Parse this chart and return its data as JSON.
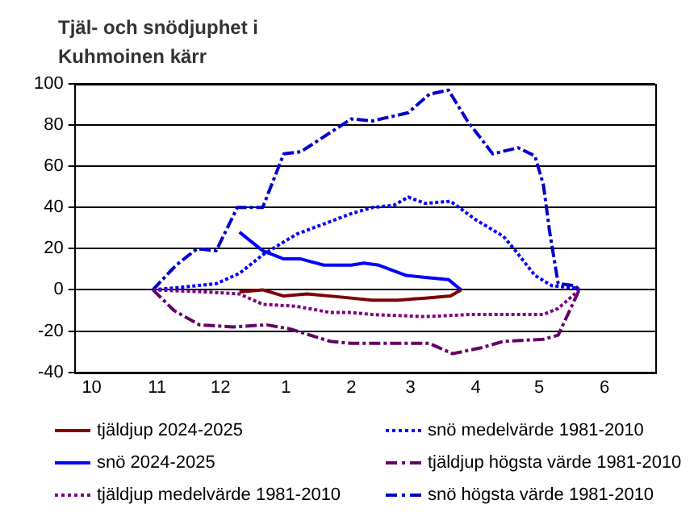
{
  "chart_data": {
    "type": "line",
    "title": "Tjäl- och snödjuphet i Kuhmoinen kärr",
    "xlim": [
      "2024-09-23",
      "2025-06-25"
    ],
    "xticks": [
      {
        "value": "2024-10-01",
        "label": "10"
      },
      {
        "value": "2024-11-01",
        "label": "11"
      },
      {
        "value": "2024-12-01",
        "label": "12"
      },
      {
        "value": "2025-01-01",
        "label": "1"
      },
      {
        "value": "2025-02-01",
        "label": "2"
      },
      {
        "value": "2025-03-01",
        "label": "3"
      },
      {
        "value": "2025-04-01",
        "label": "4"
      },
      {
        "value": "2025-05-01",
        "label": "5"
      },
      {
        "value": "2025-06-01",
        "label": "6"
      }
    ],
    "ylim": [
      -40,
      100
    ],
    "yticks": [
      -40,
      -20,
      0,
      20,
      40,
      60,
      80,
      100
    ],
    "grid": "y",
    "legend": "bottom",
    "marker": "none",
    "series": [
      {
        "name": "tjäldjup 2024-2025",
        "color": "#800000",
        "line_style": "solid",
        "x": [
          "2024-12-10",
          "2024-12-21",
          "2024-12-31",
          "2025-01-11",
          "2025-01-27",
          "2025-02-11",
          "2025-02-23",
          "2025-03-08",
          "2025-03-20",
          "2025-03-25"
        ],
        "values": [
          -1,
          0,
          -3,
          -2,
          -3.5,
          -5,
          -5,
          -4,
          -3,
          0
        ]
      },
      {
        "name": "snö 2024-2025",
        "color": "#0000ff",
        "line_style": "solid",
        "x": [
          "2024-12-10",
          "2024-12-21",
          "2024-12-31",
          "2025-01-08",
          "2025-01-19",
          "2025-02-01",
          "2025-02-07",
          "2025-02-14",
          "2025-02-27",
          "2025-03-08",
          "2025-03-19",
          "2025-03-25"
        ],
        "values": [
          28,
          19,
          15,
          15,
          12,
          12,
          13,
          12,
          7,
          6,
          5,
          0
        ]
      },
      {
        "name": "tjäldjup medelvärde 1981-2010",
        "color": "#800080",
        "line_style": "dotted",
        "x": [
          "2024-10-30",
          "2024-11-24",
          "2024-12-10",
          "2024-12-21",
          "2025-01-06",
          "2025-01-22",
          "2025-02-01",
          "2025-02-11",
          "2025-03-08",
          "2025-03-29",
          "2025-05-03",
          "2025-05-10",
          "2025-05-20"
        ],
        "values": [
          0,
          -1,
          -2,
          -7,
          -8,
          -11,
          -11,
          -12,
          -13,
          -12,
          -12,
          -9,
          0
        ]
      },
      {
        "name": "snö medelvärde 1981-2010",
        "color": "#0000ff",
        "line_style": "dotted",
        "x": [
          "2024-10-30",
          "2024-11-10",
          "2024-11-29",
          "2024-12-10",
          "2024-12-21",
          "2025-01-06",
          "2025-02-01",
          "2025-02-11",
          "2025-02-21",
          "2025-02-28",
          "2025-03-08",
          "2025-03-20",
          "2025-04-01",
          "2025-04-14",
          "2025-04-19",
          "2025-04-29",
          "2025-05-07",
          "2025-05-18",
          "2025-05-20"
        ],
        "values": [
          0,
          1,
          3,
          8,
          17,
          27,
          37,
          40,
          41,
          45,
          42,
          43,
          34,
          26,
          20,
          7,
          2,
          1,
          0
        ]
      },
      {
        "name": "tjäldjup högsta värde 1981-2010",
        "color": "#660066",
        "line_style": "dashed",
        "x": [
          "2024-10-30",
          "2024-11-09",
          "2024-11-21",
          "2024-12-07",
          "2024-12-23",
          "2025-01-03",
          "2025-01-22",
          "2025-02-01",
          "2025-03-10",
          "2025-03-21",
          "2025-04-04",
          "2025-04-14",
          "2025-05-03",
          "2025-05-10",
          "2025-05-20"
        ],
        "values": [
          0,
          -10,
          -17,
          -18,
          -17,
          -19,
          -25,
          -26,
          -26,
          -31,
          -28,
          -25,
          -24,
          -22,
          0
        ]
      },
      {
        "name": "snö högsta värde 1981-2010",
        "color": "#0000cc",
        "line_style": "dashed",
        "x": [
          "2024-10-30",
          "2024-11-10",
          "2024-11-20",
          "2024-11-29",
          "2024-12-09",
          "2024-12-21",
          "2024-12-31",
          "2025-01-08",
          "2025-02-01",
          "2025-02-11",
          "2025-02-28",
          "2025-03-10",
          "2025-03-19",
          "2025-03-28",
          "2025-04-09",
          "2025-04-21",
          "2025-04-29",
          "2025-05-03",
          "2025-05-06",
          "2025-05-10",
          "2025-05-18",
          "2025-05-20"
        ],
        "values": [
          0,
          12,
          20,
          19,
          40,
          40,
          66,
          67,
          83,
          82,
          86,
          95,
          97,
          82,
          66,
          69,
          65,
          51,
          28,
          3,
          2,
          0
        ]
      }
    ]
  }
}
